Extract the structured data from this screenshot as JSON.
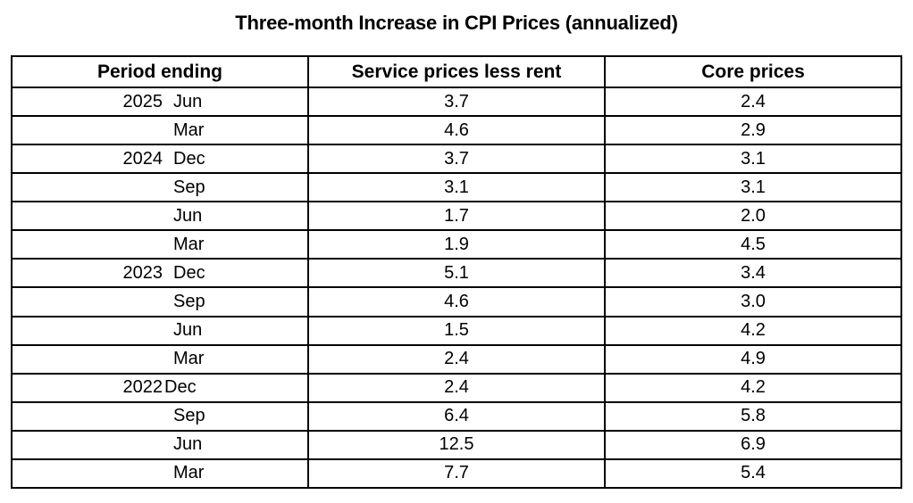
{
  "title": "Three-month Increase in CPI Prices (annualized)",
  "table": {
    "columns": [
      "Period ending",
      "Service prices less rent",
      "Core prices"
    ],
    "rows": [
      {
        "year": "2025",
        "month": "Jun",
        "service": "3.7",
        "core": "2.4"
      },
      {
        "year": "",
        "month": "Mar",
        "service": "4.6",
        "core": "2.9"
      },
      {
        "year": "2024",
        "month": "Dec",
        "service": "3.7",
        "core": "3.1"
      },
      {
        "year": "",
        "month": "Sep",
        "service": "3.1",
        "core": "3.1"
      },
      {
        "year": "",
        "month": "Jun",
        "service": "1.7",
        "core": "2.0"
      },
      {
        "year": "",
        "month": "Mar",
        "service": "1.9",
        "core": "4.5"
      },
      {
        "year": "2023",
        "month": "Dec",
        "service": "5.1",
        "core": "3.4"
      },
      {
        "year": "",
        "month": "Sep",
        "service": "4.6",
        "core": "3.0"
      },
      {
        "year": "",
        "month": "Jun",
        "service": "1.5",
        "core": "4.2"
      },
      {
        "year": "",
        "month": "Mar",
        "service": "2.4",
        "core": "4.9"
      },
      {
        "year": "2022",
        "month": "Dec",
        "service": "2.4",
        "core": "4.2",
        "year_gap": "narrow"
      },
      {
        "year": "",
        "month": "Sep",
        "service": "6.4",
        "core": "5.8"
      },
      {
        "year": "",
        "month": "Jun",
        "service": "12.5",
        "core": "6.9"
      },
      {
        "year": "",
        "month": "Mar",
        "service": "7.7",
        "core": "5.4"
      }
    ]
  },
  "colors": {
    "background": "#ffffff",
    "text": "#000000",
    "border": "#000000"
  },
  "chart_data": {
    "type": "table",
    "title": "Three-month Increase in CPI Prices (annualized)",
    "columns": [
      "Period ending",
      "Service prices less rent",
      "Core prices"
    ],
    "periods": [
      "2025 Jun",
      "2025 Mar",
      "2024 Dec",
      "2024 Sep",
      "2024 Jun",
      "2024 Mar",
      "2023 Dec",
      "2023 Sep",
      "2023 Jun",
      "2023 Mar",
      "2022 Dec",
      "2022 Sep",
      "2022 Jun",
      "2022 Mar"
    ],
    "series": [
      {
        "name": "Service prices less rent",
        "values": [
          3.7,
          4.6,
          3.7,
          3.1,
          1.7,
          1.9,
          5.1,
          4.6,
          1.5,
          2.4,
          2.4,
          6.4,
          12.5,
          7.7
        ]
      },
      {
        "name": "Core prices",
        "values": [
          2.4,
          2.9,
          3.1,
          3.1,
          2.0,
          4.5,
          3.4,
          3.0,
          4.2,
          4.9,
          4.2,
          5.8,
          6.9,
          5.4
        ]
      }
    ],
    "layout_hints": {
      "period_display": "year shown only on first row of each year group, months aligned in sub-column",
      "all_cells_center_aligned": true,
      "grid": "all black borders"
    }
  }
}
